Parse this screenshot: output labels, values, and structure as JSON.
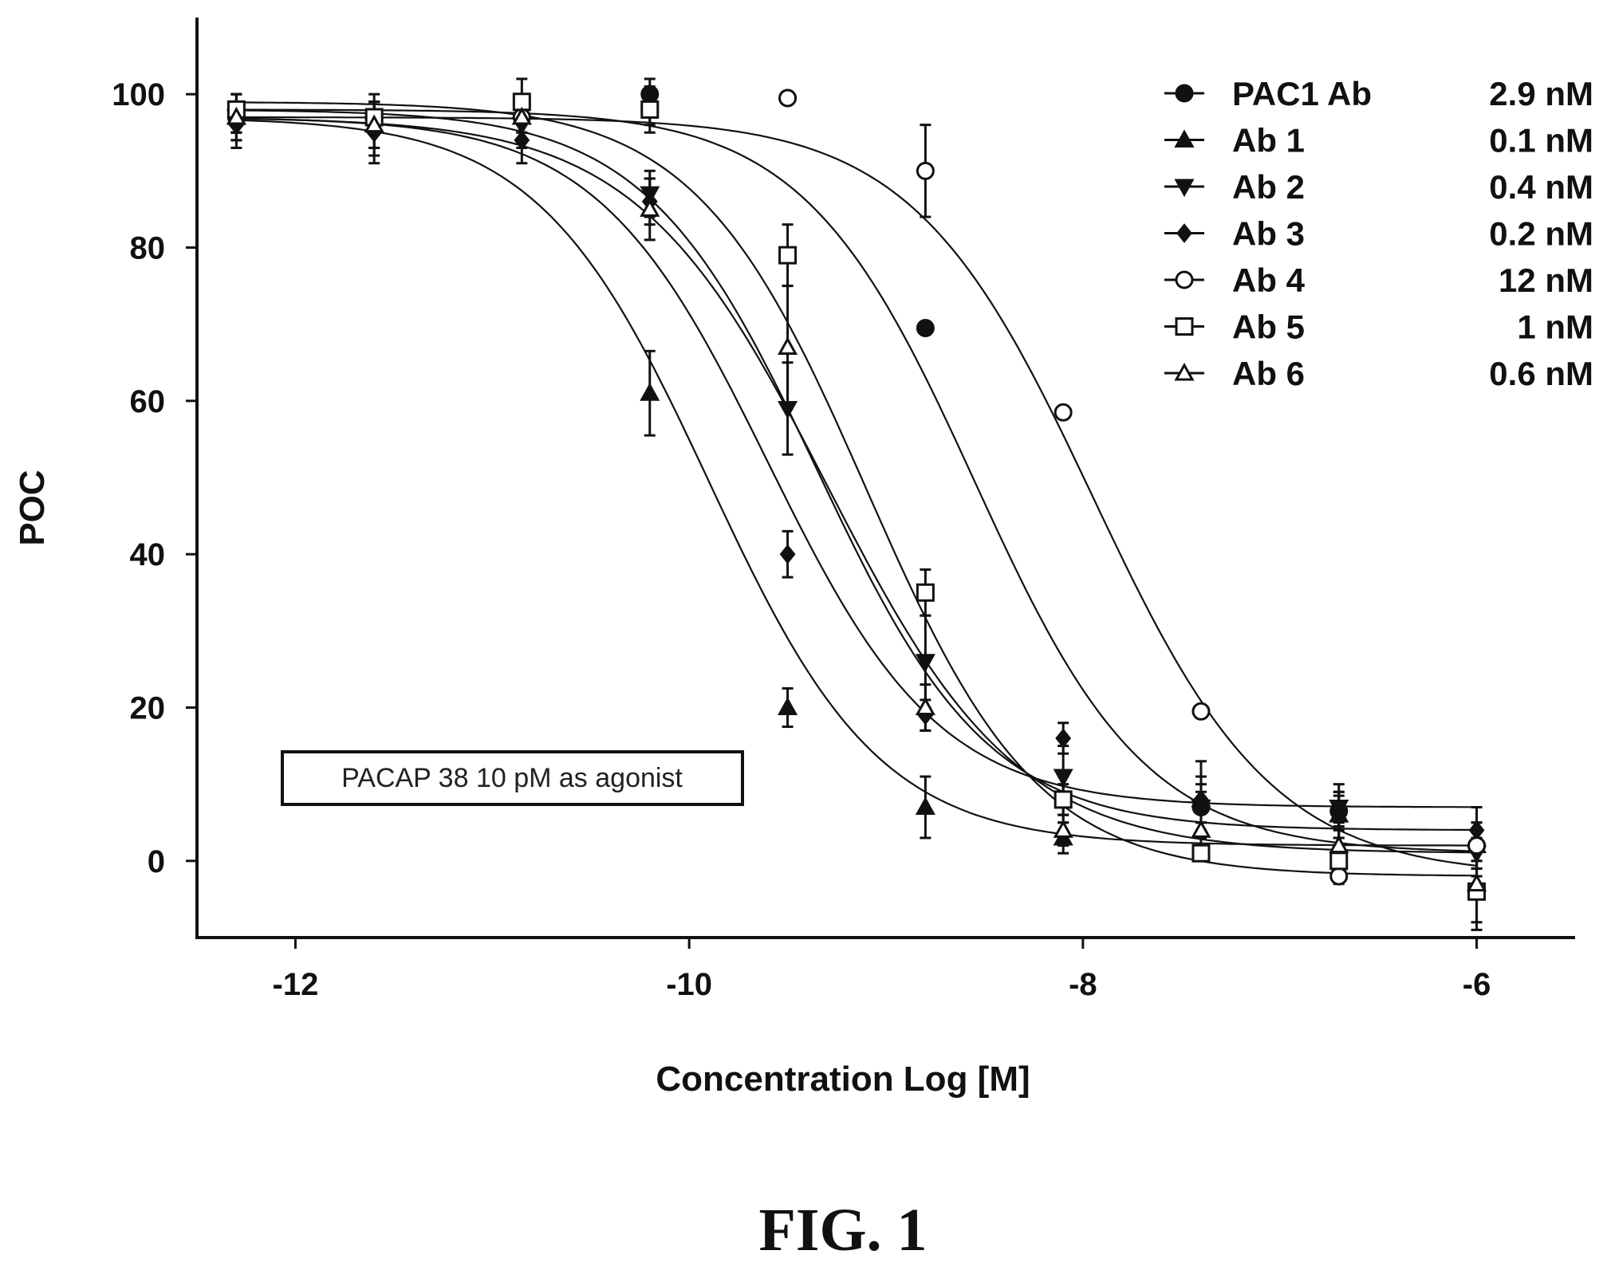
{
  "figure_caption": "FIG. 1",
  "colors": {
    "ink": "#111111",
    "background": "#ffffff"
  },
  "chart_data": {
    "type": "scatter",
    "xlabel": "Concentration Log [M]",
    "ylabel": "POC",
    "xlim": [
      -12.5,
      -5.5
    ],
    "ylim": [
      -10,
      110
    ],
    "xticks": [
      -12,
      -10,
      -8,
      -6
    ],
    "yticks": [
      0,
      20,
      40,
      60,
      80,
      100
    ],
    "grid": false,
    "legend_position": "top-right",
    "annotation": "PACAP 38 10 pM as agonist",
    "x": [
      -12.3,
      -11.6,
      -10.85,
      -10.2,
      -9.5,
      -8.8,
      -8.1,
      -7.4,
      -6.7,
      -6.0
    ],
    "series": [
      {
        "name": "PAC1 Ab",
        "ic50_label": "2.9 nM",
        "marker": "filled-circle",
        "values": [
          97,
          97,
          97,
          100,
          99.5,
          69.5,
          8,
          7,
          6.5,
          2
        ],
        "errors": [
          2,
          2,
          2,
          2,
          0,
          0,
          2,
          2,
          2,
          2
        ],
        "fit": {
          "top": 98,
          "bottom": 1,
          "logec50": -8.55,
          "hill": 1.0
        }
      },
      {
        "name": "Ab 1",
        "ic50_label": "0.1 nM",
        "marker": "filled-triangle",
        "values": [
          97,
          96,
          97,
          61,
          20,
          7,
          3,
          8,
          6,
          2
        ],
        "errors": [
          3,
          3,
          3,
          5.5,
          2.5,
          4,
          2,
          5,
          3,
          3
        ],
        "fit": {
          "top": 97,
          "bottom": 2,
          "logec50": -9.9,
          "hill": 1.0
        }
      },
      {
        "name": "Ab 2",
        "ic50_label": "0.4 nM",
        "marker": "filled-down-triangle",
        "values": [
          97,
          96,
          96,
          87,
          59,
          26,
          11,
          7,
          7,
          1
        ],
        "errors": [
          3,
          4,
          3,
          3,
          6,
          6,
          4,
          3,
          3,
          3
        ],
        "fit": {
          "top": 97,
          "bottom": 1,
          "logec50": -9.3,
          "hill": 0.9
        }
      },
      {
        "name": "Ab 3",
        "ic50_label": "0.2 nM",
        "marker": "filled-diamond",
        "values": [
          96,
          95,
          94,
          86,
          40,
          19,
          16,
          8,
          6,
          4
        ],
        "errors": [
          3,
          4,
          3,
          3,
          3,
          2,
          2,
          3,
          3,
          3
        ],
        "fit": {
          "top": 97,
          "bottom": 7,
          "logec50": -9.6,
          "hill": 1.0
        }
      },
      {
        "name": "Ab 4",
        "ic50_label": "12 nM",
        "marker": "open-circle",
        "values": [
          97,
          97,
          97,
          98,
          99.5,
          90,
          58.5,
          19.5,
          -2,
          2
        ],
        "errors": [
          2,
          2,
          2,
          2,
          0,
          6,
          0,
          0,
          1,
          3
        ],
        "fit": {
          "top": 97,
          "bottom": -2,
          "logec50": -7.95,
          "hill": 0.95
        }
      },
      {
        "name": "Ab 5",
        "ic50_label": "1 nM",
        "marker": "open-square",
        "values": [
          98,
          97,
          99,
          98,
          79,
          35,
          8,
          1,
          0,
          -4
        ],
        "errors": [
          2,
          2,
          3,
          3,
          4,
          3,
          3,
          1,
          2,
          4
        ],
        "fit": {
          "top": 99,
          "bottom": -2,
          "logec50": -9.1,
          "hill": 1.0
        }
      },
      {
        "name": "Ab 6",
        "ic50_label": "0.6 nM",
        "marker": "open-triangle",
        "values": [
          97,
          96,
          97,
          85,
          67,
          20,
          4,
          4,
          2,
          -3
        ],
        "errors": [
          2,
          3,
          3,
          4,
          8,
          3,
          2,
          3,
          3,
          6
        ],
        "fit": {
          "top": 98,
          "bottom": 4,
          "logec50": -9.35,
          "hill": 1.0
        }
      }
    ]
  }
}
